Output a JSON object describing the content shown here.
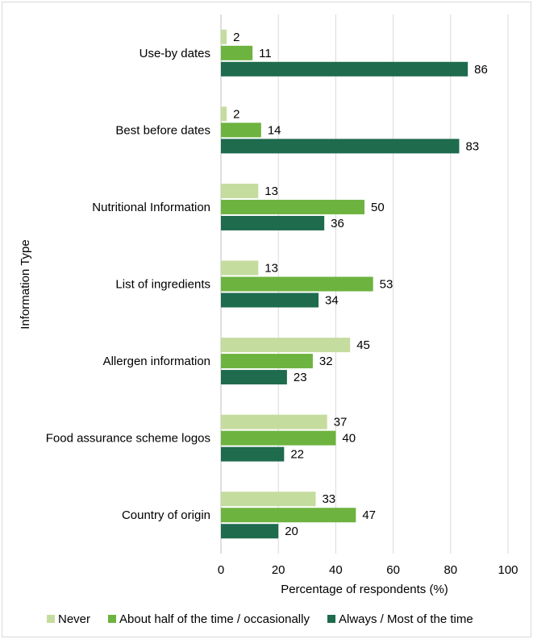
{
  "chart_data": {
    "type": "bar",
    "orientation": "horizontal",
    "categories": [
      "Use-by dates",
      "Best before dates",
      "Nutritional Information",
      "List of ingredients",
      "Allergen information",
      "Food assurance scheme logos",
      "Country of origin"
    ],
    "series": [
      {
        "name": "Never",
        "color": "#c5dc9f",
        "values": [
          2,
          2,
          13,
          13,
          45,
          37,
          33
        ]
      },
      {
        "name": "About half of the time / occasionally",
        "color": "#6db33f",
        "values": [
          11,
          14,
          50,
          53,
          32,
          40,
          47
        ]
      },
      {
        "name": "Always / Most of the time",
        "color": "#1e6b4e",
        "values": [
          86,
          83,
          36,
          34,
          23,
          22,
          20
        ]
      }
    ],
    "xlabel": "Percentage of respondents (%)",
    "ylabel": "Information Type",
    "xlim": [
      0,
      100
    ],
    "xticks": [
      0,
      20,
      40,
      60,
      80,
      100
    ],
    "grid": true,
    "legend": "bottom"
  }
}
